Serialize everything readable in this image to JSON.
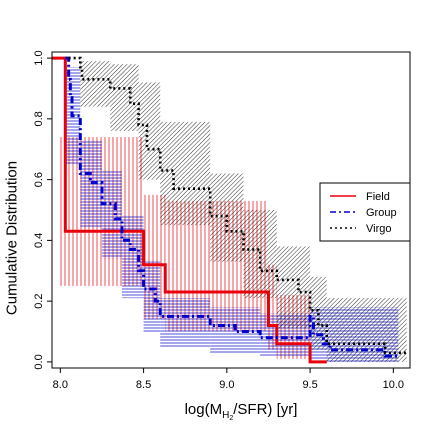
{
  "chart_data": {
    "type": "line",
    "subtype": "step (cumulative distribution) with shaded uncertainty bands",
    "title": "",
    "xlabel": "log(M_H2/SFR) [yr]",
    "xlabel_parts": {
      "pre": "log(M",
      "sub": "H",
      "subsub": "2",
      "post": "/SFR) [yr]"
    },
    "ylabel": "Cumulative Distribution",
    "xlim": [
      7.95,
      10.1
    ],
    "ylim": [
      -0.02,
      1.02
    ],
    "xticks": [
      8.0,
      8.5,
      9.0,
      9.5,
      10.0
    ],
    "xtick_labels": [
      "8.0",
      "8.5",
      "9.0",
      "9.5",
      "10.0"
    ],
    "yticks": [
      0.0,
      0.2,
      0.4,
      0.6,
      0.8,
      1.0
    ],
    "ytick_labels": [
      "0.0",
      "0.2",
      "0.4",
      "0.6",
      "0.8",
      "1.0"
    ],
    "grid": false,
    "legend": {
      "position": "right",
      "entries": [
        {
          "name": "Field",
          "color": "#e8000b",
          "style": "solid"
        },
        {
          "name": "Group",
          "color": "#0000cc",
          "style": "dashdot"
        },
        {
          "name": "Virgo",
          "color": "#000000",
          "style": "dotted"
        }
      ]
    },
    "series": [
      {
        "name": "Field",
        "color": "#e8000b",
        "hatch": "vertical",
        "steps": [
          [
            7.95,
            1.0
          ],
          [
            8.03,
            1.0
          ],
          [
            8.03,
            0.43
          ],
          [
            8.5,
            0.43
          ],
          [
            8.5,
            0.32
          ],
          [
            8.63,
            0.32
          ],
          [
            8.63,
            0.23
          ],
          [
            9.25,
            0.23
          ],
          [
            9.25,
            0.12
          ],
          [
            9.3,
            0.12
          ],
          [
            9.3,
            0.06
          ],
          [
            9.5,
            0.06
          ],
          [
            9.5,
            0.0
          ],
          [
            9.6,
            0.0
          ]
        ],
        "band": [
          {
            "x0": 8.0,
            "x1": 8.5,
            "lo": 0.25,
            "hi": 0.74
          },
          {
            "x0": 8.5,
            "x1": 8.63,
            "lo": 0.14,
            "hi": 0.55
          },
          {
            "x0": 8.63,
            "x1": 9.25,
            "lo": 0.1,
            "hi": 0.53
          },
          {
            "x0": 9.25,
            "x1": 9.3,
            "lo": 0.04,
            "hi": 0.32
          },
          {
            "x0": 9.3,
            "x1": 9.5,
            "lo": 0.01,
            "hi": 0.22
          }
        ]
      },
      {
        "name": "Group",
        "color": "#0000cc",
        "hatch": "horizontal",
        "steps": [
          [
            8.03,
            1.0
          ],
          [
            8.05,
            1.0
          ],
          [
            8.05,
            0.93
          ],
          [
            8.06,
            0.93
          ],
          [
            8.06,
            0.87
          ],
          [
            8.07,
            0.87
          ],
          [
            8.07,
            0.81
          ],
          [
            8.12,
            0.81
          ],
          [
            8.12,
            0.62
          ],
          [
            8.18,
            0.62
          ],
          [
            8.18,
            0.59
          ],
          [
            8.25,
            0.59
          ],
          [
            8.25,
            0.52
          ],
          [
            8.33,
            0.52
          ],
          [
            8.33,
            0.47
          ],
          [
            8.37,
            0.47
          ],
          [
            8.37,
            0.4
          ],
          [
            8.42,
            0.4
          ],
          [
            8.42,
            0.37
          ],
          [
            8.47,
            0.37
          ],
          [
            8.47,
            0.3
          ],
          [
            8.5,
            0.3
          ],
          [
            8.5,
            0.24
          ],
          [
            8.57,
            0.24
          ],
          [
            8.57,
            0.2
          ],
          [
            8.6,
            0.2
          ],
          [
            8.6,
            0.15
          ],
          [
            8.9,
            0.15
          ],
          [
            8.9,
            0.12
          ],
          [
            9.05,
            0.12
          ],
          [
            9.05,
            0.1
          ],
          [
            9.2,
            0.1
          ],
          [
            9.2,
            0.08
          ],
          [
            9.5,
            0.08
          ],
          [
            9.5,
            0.15
          ],
          [
            9.52,
            0.15
          ],
          [
            9.52,
            0.09
          ],
          [
            9.58,
            0.09
          ],
          [
            9.58,
            0.06
          ],
          [
            9.62,
            0.06
          ],
          [
            9.62,
            0.04
          ],
          [
            9.95,
            0.04
          ],
          [
            9.95,
            0.02
          ],
          [
            10.03,
            0.02
          ]
        ],
        "band": [
          {
            "x0": 8.03,
            "x1": 8.12,
            "lo": 0.65,
            "hi": 0.97
          },
          {
            "x0": 8.12,
            "x1": 8.25,
            "lo": 0.44,
            "hi": 0.73
          },
          {
            "x0": 8.25,
            "x1": 8.37,
            "lo": 0.34,
            "hi": 0.63
          },
          {
            "x0": 8.37,
            "x1": 8.5,
            "lo": 0.21,
            "hi": 0.48
          },
          {
            "x0": 8.5,
            "x1": 8.6,
            "lo": 0.1,
            "hi": 0.33
          },
          {
            "x0": 8.6,
            "x1": 8.9,
            "lo": 0.05,
            "hi": 0.21
          },
          {
            "x0": 8.9,
            "x1": 9.2,
            "lo": 0.03,
            "hi": 0.18
          },
          {
            "x0": 9.2,
            "x1": 9.5,
            "lo": 0.02,
            "hi": 0.16
          },
          {
            "x0": 9.5,
            "x1": 10.03,
            "lo": 0.0,
            "hi": 0.18
          }
        ]
      },
      {
        "name": "Virgo",
        "color": "#000000",
        "hatch": "diagonal",
        "steps": [
          [
            8.05,
            1.0
          ],
          [
            8.12,
            1.0
          ],
          [
            8.12,
            0.97
          ],
          [
            8.13,
            0.97
          ],
          [
            8.13,
            0.93
          ],
          [
            8.3,
            0.93
          ],
          [
            8.3,
            0.9
          ],
          [
            8.42,
            0.9
          ],
          [
            8.42,
            0.85
          ],
          [
            8.47,
            0.85
          ],
          [
            8.47,
            0.78
          ],
          [
            8.52,
            0.78
          ],
          [
            8.52,
            0.7
          ],
          [
            8.6,
            0.7
          ],
          [
            8.6,
            0.63
          ],
          [
            8.68,
            0.63
          ],
          [
            8.68,
            0.57
          ],
          [
            8.9,
            0.57
          ],
          [
            8.9,
            0.48
          ],
          [
            9.0,
            0.48
          ],
          [
            9.0,
            0.43
          ],
          [
            9.1,
            0.43
          ],
          [
            9.1,
            0.37
          ],
          [
            9.2,
            0.37
          ],
          [
            9.2,
            0.3
          ],
          [
            9.3,
            0.3
          ],
          [
            9.3,
            0.27
          ],
          [
            9.43,
            0.27
          ],
          [
            9.43,
            0.23
          ],
          [
            9.5,
            0.23
          ],
          [
            9.5,
            0.17
          ],
          [
            9.55,
            0.17
          ],
          [
            9.55,
            0.12
          ],
          [
            9.6,
            0.12
          ],
          [
            9.6,
            0.06
          ],
          [
            9.95,
            0.06
          ],
          [
            9.95,
            0.03
          ],
          [
            10.08,
            0.03
          ]
        ],
        "band": [
          {
            "x0": 8.12,
            "x1": 8.3,
            "lo": 0.84,
            "hi": 0.99
          },
          {
            "x0": 8.3,
            "x1": 8.47,
            "lo": 0.76,
            "hi": 0.98
          },
          {
            "x0": 8.47,
            "x1": 8.6,
            "lo": 0.6,
            "hi": 0.92
          },
          {
            "x0": 8.6,
            "x1": 8.9,
            "lo": 0.45,
            "hi": 0.79
          },
          {
            "x0": 8.9,
            "x1": 9.1,
            "lo": 0.33,
            "hi": 0.62
          },
          {
            "x0": 9.1,
            "x1": 9.3,
            "lo": 0.21,
            "hi": 0.5
          },
          {
            "x0": 9.3,
            "x1": 9.5,
            "lo": 0.11,
            "hi": 0.38
          },
          {
            "x0": 9.5,
            "x1": 9.6,
            "lo": 0.04,
            "hi": 0.28
          },
          {
            "x0": 9.6,
            "x1": 10.08,
            "lo": 0.0,
            "hi": 0.21
          }
        ]
      }
    ]
  }
}
